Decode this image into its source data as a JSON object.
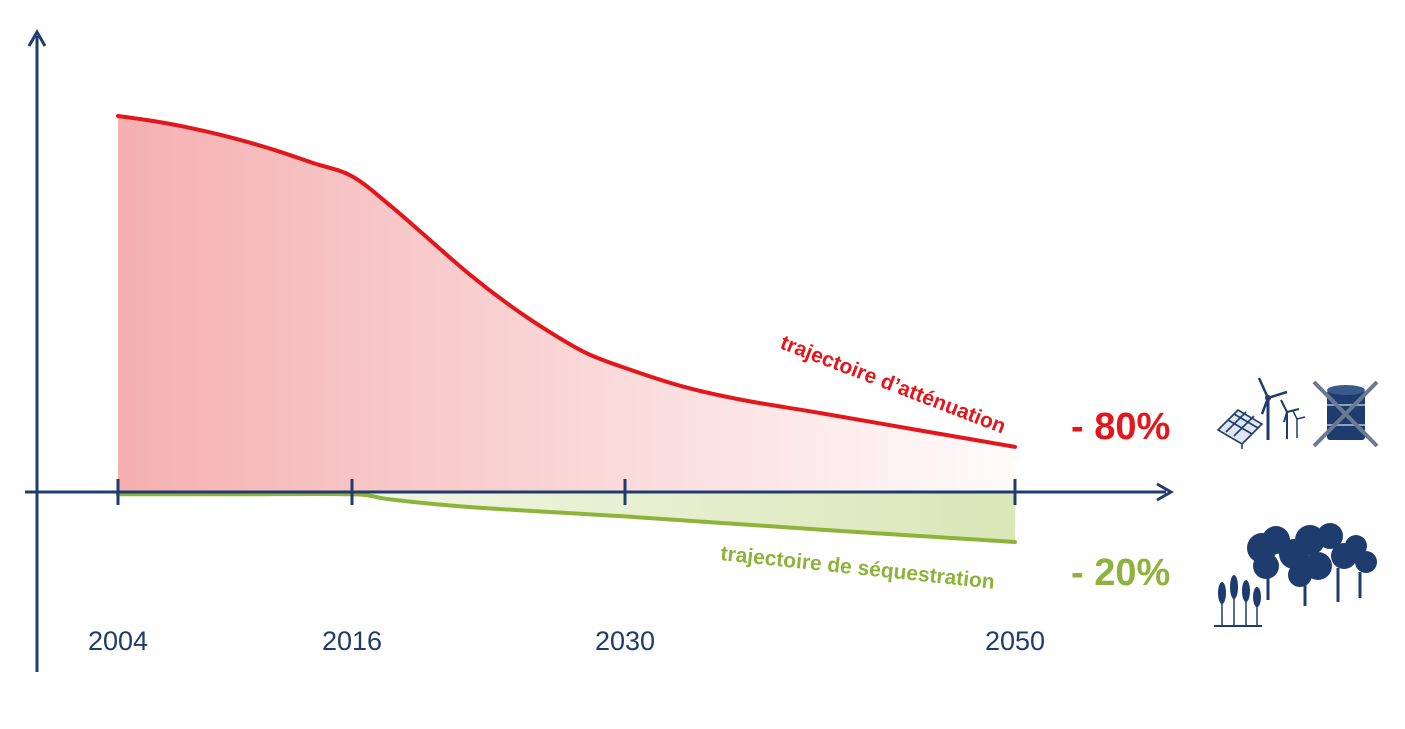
{
  "chart_data": {
    "type": "area",
    "x": [
      2004,
      2016,
      2030,
      2050
    ],
    "tick_labels": [
      "2004",
      "2016",
      "2030",
      "2050"
    ],
    "series": [
      {
        "name": "trajectoire d’atténuation",
        "points": [
          [
            2004,
            100
          ],
          [
            2006,
            98.5
          ],
          [
            2008,
            96.5
          ],
          [
            2010,
            94
          ],
          [
            2012,
            91
          ],
          [
            2014,
            87.5
          ],
          [
            2016,
            84
          ],
          [
            2018,
            76
          ],
          [
            2020,
            67
          ],
          [
            2022,
            58
          ],
          [
            2024,
            50
          ],
          [
            2026,
            43
          ],
          [
            2028,
            37
          ],
          [
            2030,
            33
          ],
          [
            2033,
            28
          ],
          [
            2036,
            24.5
          ],
          [
            2040,
            21
          ],
          [
            2045,
            16.5
          ],
          [
            2050,
            12
          ]
        ],
        "color": "#e3161b",
        "fill": "#f3a2a3",
        "change_label": "- 80%"
      },
      {
        "name": "trajectoire de séquestration",
        "points": [
          [
            2004,
            -0.6
          ],
          [
            2010,
            -0.6
          ],
          [
            2016,
            -0.6
          ],
          [
            2018,
            -2
          ],
          [
            2022,
            -4
          ],
          [
            2030,
            -6.5
          ],
          [
            2040,
            -10
          ],
          [
            2050,
            -13.3
          ]
        ],
        "color": "#8db33a",
        "fill": "#cddfa0",
        "change_label": "- 20%"
      }
    ],
    "ylim": [
      -30,
      125
    ],
    "grid": false,
    "axis_color": "#1f3c6e"
  },
  "icons": {
    "mitigation": [
      "solar-panel-icon",
      "wind-turbine-icon",
      "crossed-oil-barrel-icon"
    ],
    "sequestration": [
      "wheat-icon",
      "trees-icon"
    ],
    "icon_color": "#1f3c6e",
    "cross_color": "#6b7a8f"
  }
}
